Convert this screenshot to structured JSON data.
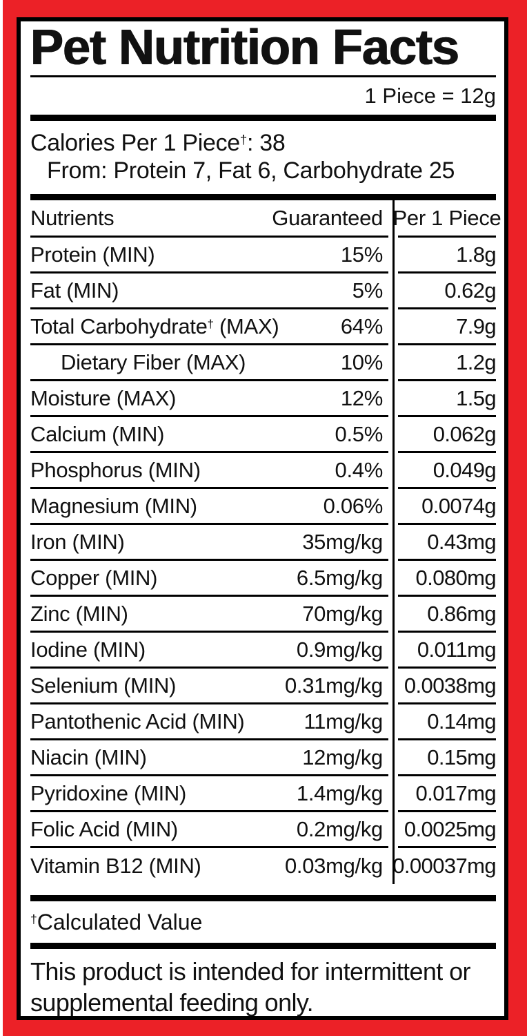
{
  "colors": {
    "frame_red": "#ec2127",
    "ink": "#111111",
    "line_black": "#000000"
  },
  "label": {
    "title": "Pet Nutrition Facts",
    "serving_size": "1 Piece = 12g",
    "calories": {
      "prefix": "Calories Per 1 Piece",
      "dagger": "†",
      "suffix": ": 38"
    },
    "calories_from": "From: Protein 7, Fat 6, Carbohydrate 25",
    "footnote": {
      "dagger": "†",
      "text": "Calculated Value"
    },
    "feeding_statement": "This product is intended for intermittent or supplemental feeding only."
  },
  "table": {
    "headers": {
      "nutrients": "Nutrients",
      "guaranteed": "Guaranteed",
      "per_piece": "Per 1 Piece"
    },
    "rows": [
      {
        "label": "Protein (MIN)",
        "guaranteed": "15%",
        "per_piece": "1.8g"
      },
      {
        "label": "Fat (MIN)",
        "guaranteed": "5%",
        "per_piece": "0.62g"
      },
      {
        "label_pre": "Total Carbohydrate",
        "label_dagger": "†",
        "label_post": " (MAX)",
        "guaranteed": "64%",
        "per_piece": "7.9g"
      },
      {
        "label": "Dietary Fiber (MAX)",
        "guaranteed": "10%",
        "per_piece": "1.2g",
        "indent": true
      },
      {
        "label": "Moisture (MAX)",
        "guaranteed": "12%",
        "per_piece": "1.5g"
      },
      {
        "label": "Calcium (MIN)",
        "guaranteed": "0.5%",
        "per_piece": "0.062g"
      },
      {
        "label": "Phosphorus (MIN)",
        "guaranteed": "0.4%",
        "per_piece": "0.049g"
      },
      {
        "label": "Magnesium (MIN)",
        "guaranteed": "0.06%",
        "per_piece": "0.0074g"
      },
      {
        "label": "Iron (MIN)",
        "guaranteed": "35mg/kg",
        "per_piece": "0.43mg"
      },
      {
        "label": "Copper (MIN)",
        "guaranteed": "6.5mg/kg",
        "per_piece": "0.080mg"
      },
      {
        "label": "Zinc (MIN)",
        "guaranteed": "70mg/kg",
        "per_piece": "0.86mg"
      },
      {
        "label": "Iodine (MIN)",
        "guaranteed": "0.9mg/kg",
        "per_piece": "0.011mg"
      },
      {
        "label": "Selenium (MIN)",
        "guaranteed": "0.31mg/kg",
        "per_piece": "0.0038mg"
      },
      {
        "label": "Pantothenic Acid (MIN)",
        "guaranteed": "11mg/kg",
        "per_piece": "0.14mg"
      },
      {
        "label": "Niacin (MIN)",
        "guaranteed": "12mg/kg",
        "per_piece": "0.15mg"
      },
      {
        "label": "Pyridoxine (MIN)",
        "guaranteed": "1.4mg/kg",
        "per_piece": "0.017mg"
      },
      {
        "label": "Folic Acid (MIN)",
        "guaranteed": "0.2mg/kg",
        "per_piece": "0.0025mg"
      },
      {
        "label": "Vitamin B12 (MIN)",
        "guaranteed": "0.03mg/kg",
        "per_piece": "0.00037mg"
      }
    ]
  }
}
